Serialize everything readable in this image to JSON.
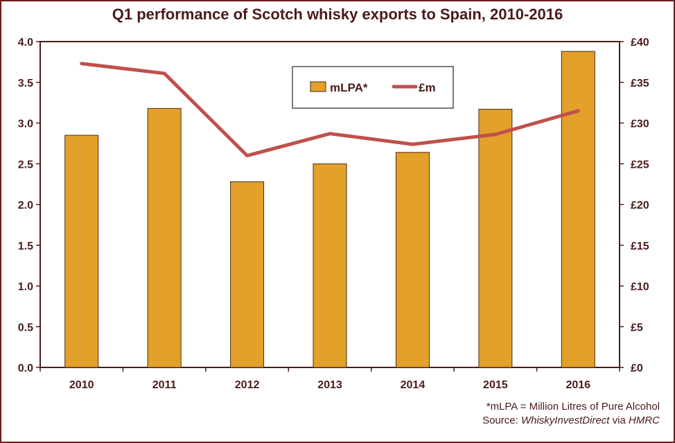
{
  "chart_data": {
    "type": "bar",
    "title": "Q1 performance of Scotch whisky exports to Spain, 2010-2016",
    "categories": [
      "2010",
      "2011",
      "2012",
      "2013",
      "2014",
      "2015",
      "2016"
    ],
    "series": [
      {
        "name": "mLPA*",
        "type": "bar",
        "axis": "left",
        "color": "#e3a02a",
        "values": [
          2.85,
          3.18,
          2.28,
          2.5,
          2.64,
          3.17,
          3.88
        ]
      },
      {
        "name": "£m",
        "type": "line",
        "axis": "right",
        "color": "#c0504d",
        "values": [
          37.3,
          36.1,
          26.0,
          28.7,
          27.4,
          28.6,
          31.5
        ]
      }
    ],
    "y_left": {
      "ylim": [
        0,
        4
      ],
      "ticks": [
        "0.0",
        "0.5",
        "1.0",
        "1.5",
        "2.0",
        "2.5",
        "3.0",
        "3.5",
        "4.0"
      ]
    },
    "y_right": {
      "ylim": [
        0,
        40
      ],
      "ticks": [
        "£0",
        "£5",
        "£10",
        "£15",
        "£20",
        "£25",
        "£30",
        "£35",
        "£40"
      ]
    },
    "grid": false,
    "legend": "top-center"
  },
  "footnotes": {
    "line1": "*mLPA = Million Litres of Pure Alcohol",
    "line2_prefix": "Source: ",
    "line2_source": "WhiskyInvestDirect",
    "line2_mid": " via ",
    "line2_origin": "HMRC"
  }
}
